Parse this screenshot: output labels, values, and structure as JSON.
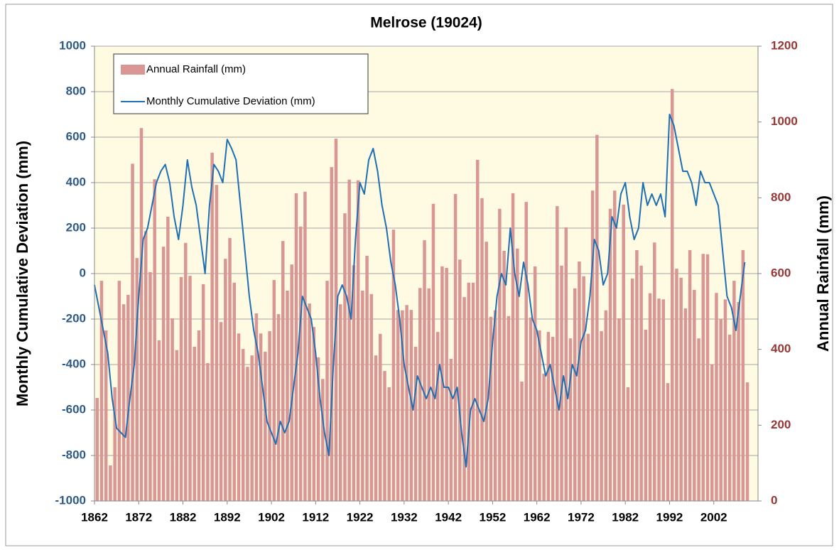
{
  "chart_data": {
    "type": "combo",
    "title": "Melrose  (19024)",
    "y_label": "Monthly Cumulative Deviation (mm)",
    "y2_label": "Annual Rainfall (mm)",
    "x": [
      1862,
      1863,
      1864,
      1865,
      1866,
      1867,
      1868,
      1869,
      1870,
      1871,
      1872,
      1873,
      1874,
      1875,
      1876,
      1877,
      1878,
      1879,
      1880,
      1881,
      1882,
      1883,
      1884,
      1885,
      1886,
      1887,
      1888,
      1889,
      1890,
      1891,
      1892,
      1893,
      1894,
      1895,
      1896,
      1897,
      1898,
      1899,
      1900,
      1901,
      1902,
      1903,
      1904,
      1905,
      1906,
      1907,
      1908,
      1909,
      1910,
      1911,
      1912,
      1913,
      1914,
      1915,
      1916,
      1917,
      1918,
      1919,
      1920,
      1921,
      1922,
      1923,
      1924,
      1925,
      1926,
      1927,
      1928,
      1929,
      1930,
      1931,
      1932,
      1933,
      1934,
      1935,
      1936,
      1937,
      1938,
      1939,
      1940,
      1941,
      1942,
      1943,
      1944,
      1945,
      1946,
      1947,
      1948,
      1949,
      1950,
      1951,
      1952,
      1953,
      1954,
      1955,
      1956,
      1957,
      1958,
      1959,
      1960,
      1961,
      1962,
      1963,
      1964,
      1965,
      1966,
      1967,
      1968,
      1969,
      1970,
      1971,
      1972,
      1973,
      1974,
      1975,
      1976,
      1977,
      1978,
      1979,
      1980,
      1981,
      1982,
      1983,
      1984,
      1985,
      1986,
      1987,
      1988,
      1989,
      1990,
      1991,
      1992,
      1993,
      1994,
      1995,
      1996,
      1997,
      1998,
      1999,
      2000,
      2001,
      2002,
      2003,
      2004,
      2005,
      2006,
      2007,
      2008,
      2009
    ],
    "series": [
      {
        "name": "Annual Rainfall (mm)",
        "type": "bar",
        "axis": "y2",
        "color": "#d99694",
        "values": [
          272,
          581,
          450,
          94,
          300,
          581,
          519,
          544,
          890,
          641,
          984,
          712,
          604,
          849,
          424,
          671,
          750,
          482,
          398,
          591,
          681,
          594,
          407,
          450,
          572,
          364,
          919,
          834,
          472,
          639,
          694,
          576,
          442,
          401,
          354,
          384,
          495,
          442,
          394,
          448,
          583,
          493,
          686,
          555,
          624,
          812,
          724,
          816,
          521,
          459,
          379,
          322,
          581,
          881,
          956,
          519,
          759,
          848,
          622,
          846,
          555,
          647,
          546,
          384,
          441,
          343,
          300,
          716,
          504,
          503,
          517,
          504,
          407,
          562,
          688,
          561,
          784,
          446,
          619,
          615,
          375,
          810,
          637,
          538,
          576,
          576,
          900,
          799,
          684,
          486,
          503,
          771,
          660,
          488,
          812,
          666,
          315,
          789,
          484,
          619,
          450,
          336,
          446,
          433,
          778,
          621,
          722,
          429,
          561,
          632,
          593,
          441,
          819,
          966,
          448,
          503,
          771,
          819,
          482,
          782,
          300,
          587,
          662,
          621,
          452,
          548,
          682,
          534,
          532,
          311,
          1087,
          613,
          589,
          508,
          662,
          557,
          429,
          652,
          651,
          360,
          549,
          480,
          532,
          439,
          581,
          525,
          662,
          313
        ]
      },
      {
        "name": "Monthly Cumulative Deviation (mm)",
        "type": "line",
        "color": "#1f6fb4",
        "values": [
          -50,
          -150,
          -250,
          -350,
          -550,
          -680,
          -700,
          -720,
          -550,
          -400,
          -100,
          150,
          200,
          300,
          400,
          450,
          480,
          400,
          250,
          150,
          300,
          500,
          380,
          300,
          150,
          0,
          300,
          480,
          450,
          400,
          590,
          550,
          500,
          300,
          100,
          -100,
          -250,
          -350,
          -500,
          -650,
          -700,
          -750,
          -650,
          -700,
          -650,
          -500,
          -350,
          -100,
          -150,
          -200,
          -350,
          -550,
          -700,
          -800,
          -400,
          -100,
          -50,
          -100,
          -200,
          150,
          400,
          350,
          500,
          550,
          450,
          300,
          200,
          50,
          -50,
          -200,
          -400,
          -500,
          -600,
          -450,
          -500,
          -550,
          -500,
          -550,
          -400,
          -500,
          -500,
          -550,
          -500,
          -700,
          -850,
          -600,
          -550,
          -600,
          -650,
          -550,
          -300,
          -100,
          0,
          -50,
          200,
          0,
          -100,
          50,
          -50,
          -200,
          -250,
          -350,
          -450,
          -400,
          -500,
          -600,
          -450,
          -550,
          -400,
          -450,
          -300,
          -250,
          -100,
          150,
          100,
          -50,
          0,
          250,
          200,
          350,
          400,
          250,
          150,
          200,
          400,
          300,
          350,
          300,
          350,
          250,
          700,
          650,
          550,
          450,
          450,
          400,
          300,
          450,
          400,
          400,
          350,
          300,
          100,
          -100,
          -150,
          -250,
          -100,
          50
        ]
      }
    ],
    "xlim": [
      1862,
      2012
    ],
    "xticks": [
      1862,
      1872,
      1882,
      1892,
      1902,
      1912,
      1922,
      1932,
      1942,
      1952,
      1962,
      1972,
      1982,
      1992,
      2002
    ],
    "ylim": [
      -1000,
      1000
    ],
    "yticks": [
      -1000,
      -800,
      -600,
      -400,
      -200,
      0,
      200,
      400,
      600,
      800,
      1000
    ],
    "y2lim": [
      0,
      1200
    ],
    "y2ticks": [
      0,
      200,
      400,
      600,
      800,
      1000,
      1200
    ],
    "grid": true,
    "legend": "upper left"
  }
}
